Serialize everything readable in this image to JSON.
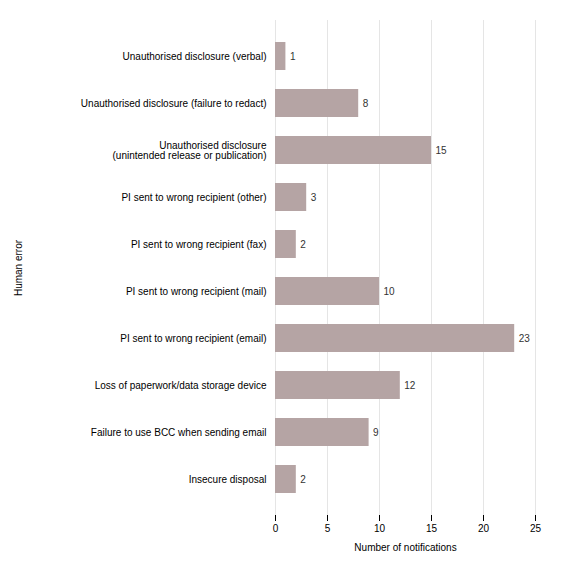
{
  "chart_data": {
    "type": "bar",
    "orientation": "horizontal",
    "categories": [
      "Unauthorised disclosure (verbal)",
      "Unauthorised disclosure (failure to redact)",
      "Unauthorised disclosure\n(unintended release or publication)",
      "PI sent to wrong recipient (other)",
      "PI sent to wrong recipient (fax)",
      "PI sent to wrong recipient (mail)",
      "PI sent to wrong recipient (email)",
      "Loss of paperwork/data storage device",
      "Failure to use BCC when sending email",
      "Insecure disposal"
    ],
    "values": [
      1,
      8,
      15,
      3,
      2,
      10,
      23,
      12,
      9,
      2
    ],
    "color": "#b5a4a4",
    "xlabel": "Number of notifications",
    "ylabel": "Human error",
    "xlim": [
      0,
      25
    ],
    "xticks": [
      0,
      5,
      10,
      15,
      20,
      25
    ],
    "grid": true,
    "data_labels": true
  }
}
